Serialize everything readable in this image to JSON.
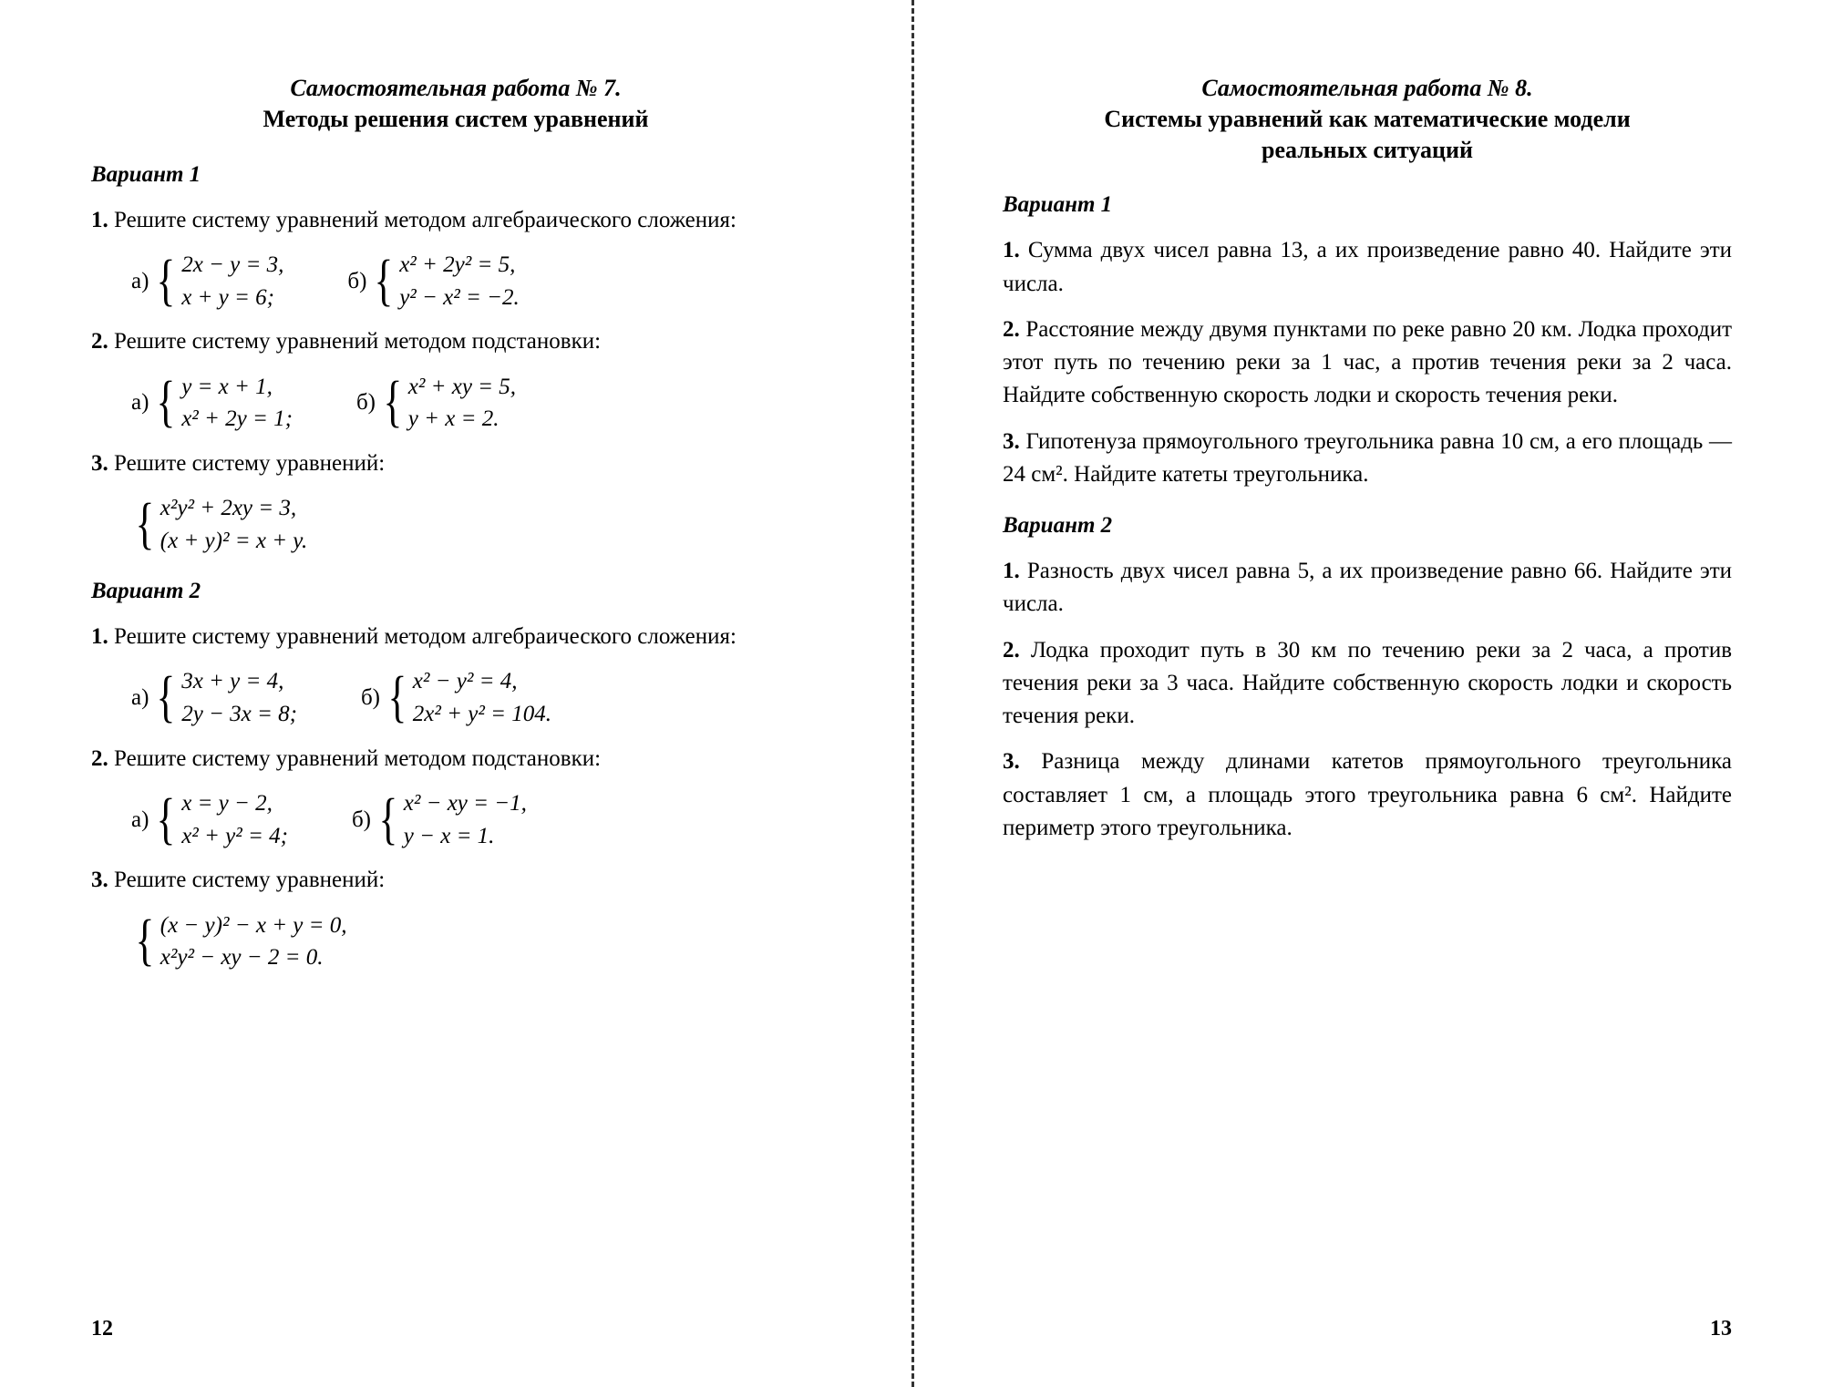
{
  "left": {
    "title_italic": "Самостоятельная работа № 7.",
    "title_bold": "Методы решения систем уравнений",
    "variant1": "Вариант 1",
    "p1_label": "1.",
    "p1_text": "Решите систему уравнений методом алгебраического сложения:",
    "p1a_label": "а)",
    "p1a_eq1": "2x − y = 3,",
    "p1a_eq2": "x + y = 6;",
    "p1b_label": "б)",
    "p1b_eq1": "x² + 2y² = 5,",
    "p1b_eq2": "y² − x² = −2.",
    "p2_label": "2.",
    "p2_text": "Решите систему уравнений методом подстановки:",
    "p2a_label": "а)",
    "p2a_eq1": "y = x + 1,",
    "p2a_eq2": "x² + 2y = 1;",
    "p2b_label": "б)",
    "p2b_eq1": "x² + xy = 5,",
    "p2b_eq2": "y + x = 2.",
    "p3_label": "3.",
    "p3_text": "Решите систему уравнений:",
    "p3_eq1": "x²y² + 2xy = 3,",
    "p3_eq2": "(x + y)² = x + y.",
    "variant2": "Вариант 2",
    "v2p1_label": "1.",
    "v2p1_text": "Решите систему уравнений методом алгебраического сложения:",
    "v2p1a_label": "а)",
    "v2p1a_eq1": "3x + y = 4,",
    "v2p1a_eq2": "2y − 3x = 8;",
    "v2p1b_label": "б)",
    "v2p1b_eq1": "x² − y² = 4,",
    "v2p1b_eq2": "2x² + y² = 104.",
    "v2p2_label": "2.",
    "v2p2_text": "Решите систему уравнений методом подстановки:",
    "v2p2a_label": "а)",
    "v2p2a_eq1": "x = y − 2,",
    "v2p2a_eq2": "x² + y² = 4;",
    "v2p2b_label": "б)",
    "v2p2b_eq1": "x² − xy = −1,",
    "v2p2b_eq2": "y − x = 1.",
    "v2p3_label": "3.",
    "v2p3_text": "Решите систему уравнений:",
    "v2p3_eq1": "(x − y)² − x + y = 0,",
    "v2p3_eq2": "x²y² − xy − 2 = 0.",
    "page_num": "12"
  },
  "right": {
    "title_italic": "Самостоятельная работа № 8.",
    "title_bold1": "Системы уравнений как математические модели",
    "title_bold2": "реальных ситуаций",
    "variant1": "Вариант 1",
    "p1_label": "1.",
    "p1_text": "Сумма двух чисел равна 13, а их произведение равно 40. Найдите эти числа.",
    "p2_label": "2.",
    "p2_text": "Расстояние между двумя пунктами по реке равно 20 км. Лодка проходит этот путь по течению реки за 1 час, а против течения реки за 2 часа. Найдите собственную скорость лодки и скорость течения реки.",
    "p3_label": "3.",
    "p3_text": "Гипотенуза прямоугольного треугольника равна 10 см, а его площадь — 24 см². Найдите катеты треугольника.",
    "variant2": "Вариант 2",
    "v2p1_label": "1.",
    "v2p1_text": "Разность двух чисел равна 5, а их произведение равно 66. Найдите эти числа.",
    "v2p2_label": "2.",
    "v2p2_text": "Лодка проходит путь в 30 км по течению реки за 2 часа, а против течения реки за 3 часа. Найдите собственную скорость лодки и скорость течения реки.",
    "v2p3_label": "3.",
    "v2p3_text": "Разница между длинами катетов прямоугольного треугольника составляет 1 см, а площадь этого треугольника равна 6 см². Найдите периметр этого треугольника.",
    "page_num": "13"
  }
}
